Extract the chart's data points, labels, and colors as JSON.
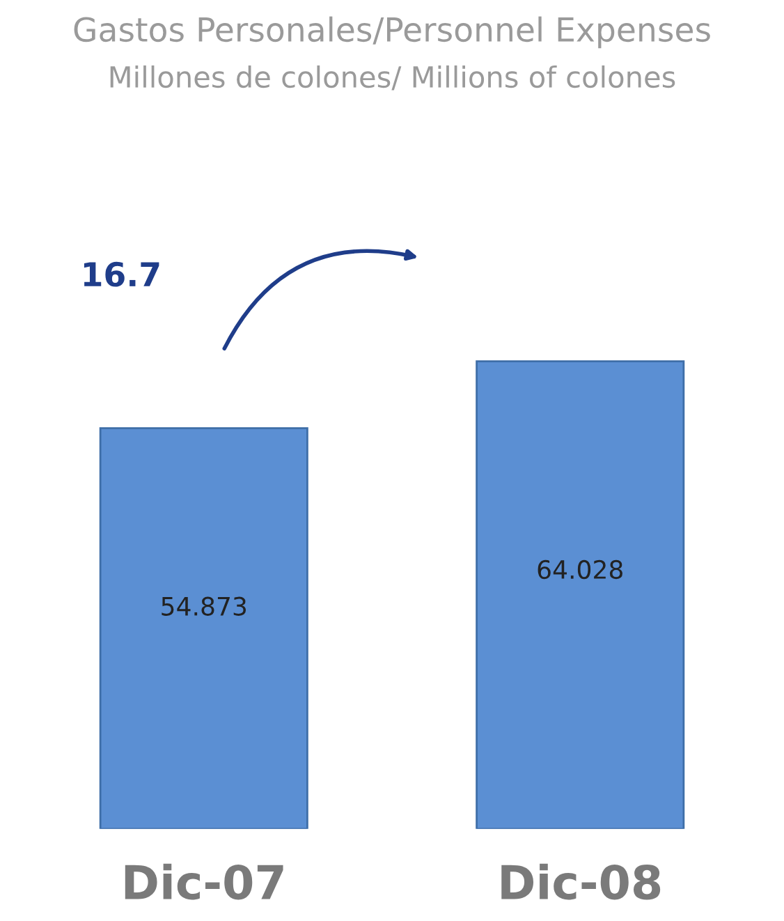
{
  "chart_data": {
    "type": "bar",
    "title": "Gastos Personales/Personnel Expenses",
    "subtitle": "Millones de colones/ Millions of colones",
    "categories": [
      "Dic-07",
      "Dic-08"
    ],
    "values": [
      54.873,
      64.028
    ],
    "color": "#5b8fd3",
    "data_labels": true,
    "grid": false,
    "legend": false,
    "annotations": [
      "16.7"
    ]
  }
}
